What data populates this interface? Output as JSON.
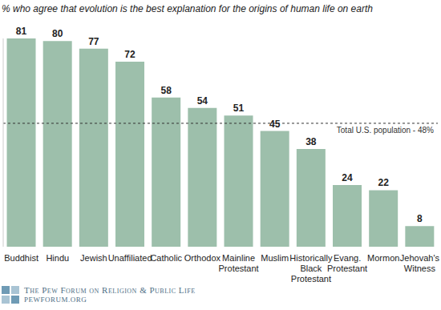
{
  "chart_data": {
    "type": "bar",
    "title": "% who agree that evolution is the best explanation for the origins of human life on earth",
    "categories": [
      "Buddhist",
      "Hindu",
      "Jewish",
      "Unaffiliated",
      "Catholic",
      "Orthodox",
      "Mainline Protestant",
      "Muslim",
      "Historically Black Protestant",
      "Evang. Protestant",
      "Mormon",
      "Jehovah's Witness"
    ],
    "values": [
      81,
      80,
      77,
      72,
      58,
      54,
      51,
      45,
      38,
      24,
      22,
      8
    ],
    "color": "#9dbfab",
    "ylim": [
      0,
      81
    ],
    "tick_labels": "x",
    "grid": false,
    "data_labels": true,
    "annotations": [
      {
        "text": "Total U.S. population - 48%",
        "y": 48
      }
    ],
    "footer": [
      "The Pew Forum on Religion & Public Life",
      "PEWFORUM.ORG"
    ]
  }
}
